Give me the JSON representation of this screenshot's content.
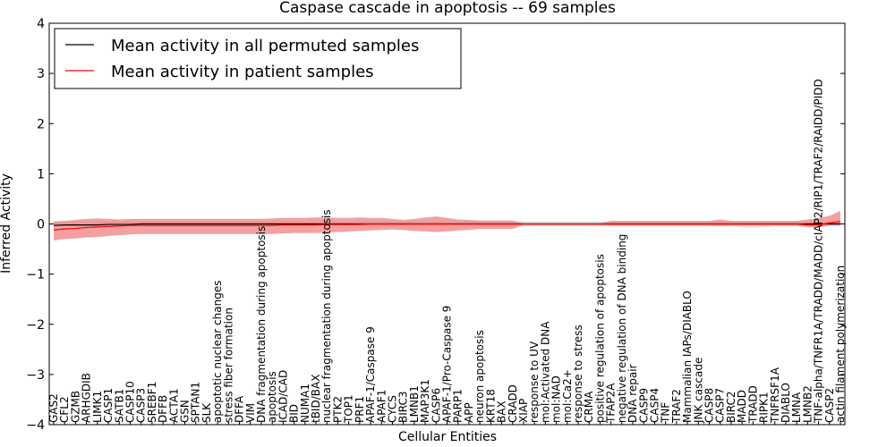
{
  "chart_data": {
    "type": "line",
    "title": "Caspase cascade in apoptosis -- 69 samples",
    "xlabel": "Cellular Entities",
    "ylabel": "Inferred Activity",
    "ylim": [
      -4,
      4
    ],
    "yticks": [
      -4,
      -3,
      -2,
      -1,
      0,
      1,
      2,
      3,
      4
    ],
    "ytick_labels": [
      "−4",
      "−3",
      "−2",
      "−1",
      "0",
      "1",
      "2",
      "3",
      "4"
    ],
    "legend_position": "top-left",
    "categories": [
      "GAS2",
      "CFL2",
      "GZMB",
      "ARHGDIB",
      "LIMK1",
      "CASP1",
      "SATB1",
      "CASP10",
      "CASP3",
      "SREBF1",
      "DFFB",
      "ACTA1",
      "GSN",
      "SPTAN1",
      "SLK",
      "apoptotic nuclear changes",
      "stress fiber formation",
      "DFFA",
      "VIM",
      "DNA fragmentation during apoptosis",
      "apoptosis",
      "ICAD/CAD",
      "BID",
      "NUMA1",
      "tBID/BAX",
      "nuclear fragmentation during apoptosis",
      "PTK2",
      "TOP1",
      "PRF1",
      "APAF-1/Caspase 9",
      "APAF1",
      "CYCS",
      "BIRC3",
      "LMNB1",
      "MAP3K1",
      "CASP6",
      "APAF-1/Pro-Caspase 9",
      "PARP1",
      "APP",
      "neuron apoptosis",
      "KRT18",
      "BAX",
      "CRADD",
      "XIAP",
      "response to UV",
      "mol:Activated DNA",
      "mol:NAD",
      "mol:Ca2+",
      "response to stress",
      "CRMA",
      "positive regulation of apoptosis",
      "TFAP2A",
      "negative regulation of DNA binding",
      "DNA repair",
      "CASP9",
      "CASP4",
      "TNF",
      "TRAF2",
      "Mammalian IAPs/DIABLO",
      "JNK cascade",
      "CASP8",
      "CASP7",
      "BIRC2",
      "MADD",
      "TRADD",
      "RIPK1",
      "TNFRSF1A",
      "DIABLO",
      "LMNA",
      "LMNB2",
      "TNF-alpha/TNFR1A/TRADD/MADD/cIAP2/RIP1/TRAF2/RAIDD/PIDD",
      "CASP2",
      "actin filament polymerization"
    ],
    "series": [
      {
        "name": "Mean activity in all permuted samples",
        "color": "#000000",
        "values": [
          -0.03,
          -0.02,
          -0.02,
          -0.02,
          -0.02,
          -0.01,
          -0.01,
          -0.01,
          0.0,
          0.0,
          0.0,
          0.0,
          0.0,
          0.0,
          0.0,
          0.0,
          0.0,
          0.0,
          0.0,
          0.0,
          0.0,
          0.0,
          0.0,
          0.0,
          0.0,
          0.0,
          0.0,
          0.0,
          0.0,
          0.0,
          0.0,
          0.0,
          0.0,
          0.0,
          0.0,
          0.0,
          0.0,
          0.0,
          0.0,
          0.0,
          0.0,
          0.0,
          0.0,
          0.0,
          0.0,
          0.0,
          0.0,
          0.0,
          0.0,
          0.0,
          0.0,
          0.0,
          0.0,
          0.0,
          0.0,
          0.0,
          0.0,
          0.0,
          0.0,
          0.0,
          0.0,
          0.0,
          0.0,
          0.0,
          0.0,
          0.0,
          0.0,
          0.0,
          0.0,
          0.0,
          0.0,
          0.0,
          0.0
        ],
        "band_lower": [
          -0.05,
          -0.05,
          -0.05,
          -0.05,
          -0.05,
          -0.05,
          -0.05,
          -0.05,
          -0.05,
          -0.05,
          -0.05,
          -0.05,
          -0.05,
          -0.05,
          -0.05,
          -0.05,
          -0.05,
          -0.05,
          -0.05,
          -0.05,
          -0.05,
          -0.05,
          -0.05,
          -0.05,
          -0.05,
          -0.05,
          -0.05,
          -0.05,
          -0.05,
          -0.05,
          -0.05,
          -0.05,
          -0.05,
          -0.05,
          -0.05,
          -0.05,
          -0.05,
          -0.05,
          -0.05,
          -0.05,
          -0.05,
          -0.05,
          -0.05,
          -0.05,
          -0.05,
          -0.05,
          -0.05,
          -0.05,
          -0.05,
          -0.05,
          -0.05,
          -0.05,
          -0.05,
          -0.05,
          -0.05,
          -0.05,
          -0.05,
          -0.05,
          -0.05,
          -0.05,
          -0.05,
          -0.05,
          -0.05,
          -0.07,
          -0.07,
          -0.07,
          -0.05,
          -0.05,
          -0.05,
          -0.05,
          -0.05,
          -0.05,
          -0.05
        ],
        "band_upper": [
          0.05,
          0.05,
          0.05,
          0.05,
          0.05,
          0.05,
          0.05,
          0.05,
          0.05,
          0.05,
          0.05,
          0.05,
          0.05,
          0.05,
          0.05,
          0.05,
          0.05,
          0.05,
          0.05,
          0.05,
          0.05,
          0.05,
          0.05,
          0.05,
          0.05,
          0.05,
          0.05,
          0.05,
          0.05,
          0.05,
          0.05,
          0.05,
          0.05,
          0.05,
          0.05,
          0.05,
          0.05,
          0.05,
          0.05,
          0.05,
          0.05,
          0.05,
          0.05,
          0.05,
          0.05,
          0.05,
          0.05,
          0.05,
          0.05,
          0.05,
          0.05,
          0.05,
          0.05,
          0.05,
          0.05,
          0.05,
          0.05,
          0.05,
          0.05,
          0.05,
          0.05,
          0.05,
          0.05,
          0.05,
          0.05,
          0.05,
          0.05,
          0.05,
          0.05,
          0.05,
          0.05,
          0.05,
          0.05
        ]
      },
      {
        "name": "Mean activity in patient samples",
        "color": "#ff0000",
        "band_color": "#f08080",
        "values": [
          -0.12,
          -0.1,
          -0.09,
          -0.07,
          -0.06,
          -0.05,
          -0.04,
          -0.03,
          -0.03,
          -0.03,
          -0.03,
          -0.03,
          -0.03,
          -0.03,
          -0.03,
          -0.03,
          -0.03,
          -0.03,
          -0.03,
          -0.03,
          -0.03,
          -0.02,
          -0.02,
          -0.02,
          -0.02,
          -0.01,
          -0.01,
          -0.01,
          -0.01,
          0.0,
          0.0,
          0.0,
          0.0,
          0.0,
          0.0,
          0.0,
          0.0,
          0.0,
          0.0,
          0.0,
          0.0,
          0.0,
          0.0,
          0.0,
          0.0,
          0.0,
          0.0,
          0.0,
          0.0,
          0.0,
          0.0,
          0.0,
          0.0,
          0.0,
          0.0,
          0.0,
          0.0,
          0.0,
          0.0,
          0.0,
          0.0,
          0.0,
          0.0,
          0.0,
          0.0,
          0.0,
          0.0,
          0.0,
          0.0,
          -0.02,
          -0.02,
          0.02,
          0.05
        ],
        "band_lower": [
          -0.33,
          -0.3,
          -0.29,
          -0.27,
          -0.26,
          -0.24,
          -0.22,
          -0.21,
          -0.2,
          -0.2,
          -0.2,
          -0.2,
          -0.2,
          -0.2,
          -0.2,
          -0.2,
          -0.2,
          -0.2,
          -0.2,
          -0.2,
          -0.2,
          -0.19,
          -0.18,
          -0.18,
          -0.18,
          -0.17,
          -0.16,
          -0.15,
          -0.14,
          -0.13,
          -0.12,
          -0.11,
          -0.12,
          -0.14,
          -0.15,
          -0.16,
          -0.15,
          -0.13,
          -0.12,
          -0.1,
          -0.1,
          -0.1,
          -0.1,
          -0.02,
          -0.02,
          -0.02,
          -0.02,
          -0.02,
          -0.02,
          -0.02,
          -0.02,
          -0.03,
          -0.03,
          -0.03,
          -0.03,
          -0.03,
          -0.03,
          -0.03,
          -0.03,
          -0.03,
          -0.03,
          -0.04,
          -0.03,
          -0.03,
          -0.03,
          -0.03,
          -0.03,
          -0.03,
          -0.03,
          -0.07,
          -0.07,
          -0.03,
          -0.02
        ],
        "band_upper": [
          0.05,
          0.06,
          0.08,
          0.1,
          0.11,
          0.1,
          0.09,
          0.1,
          0.1,
          0.1,
          0.1,
          0.1,
          0.1,
          0.1,
          0.1,
          0.1,
          0.1,
          0.1,
          0.1,
          0.1,
          0.11,
          0.12,
          0.12,
          0.12,
          0.13,
          0.13,
          0.12,
          0.12,
          0.13,
          0.12,
          0.12,
          0.1,
          0.08,
          0.1,
          0.13,
          0.15,
          0.12,
          0.09,
          0.08,
          0.07,
          0.07,
          0.07,
          0.07,
          0.01,
          0.01,
          0.01,
          0.01,
          0.01,
          0.01,
          0.01,
          0.01,
          0.06,
          0.06,
          0.06,
          0.06,
          0.06,
          0.06,
          0.06,
          0.06,
          0.06,
          0.06,
          0.09,
          0.06,
          0.06,
          0.06,
          0.06,
          0.06,
          0.06,
          0.06,
          0.09,
          0.12,
          0.16,
          0.26
        ]
      }
    ]
  }
}
